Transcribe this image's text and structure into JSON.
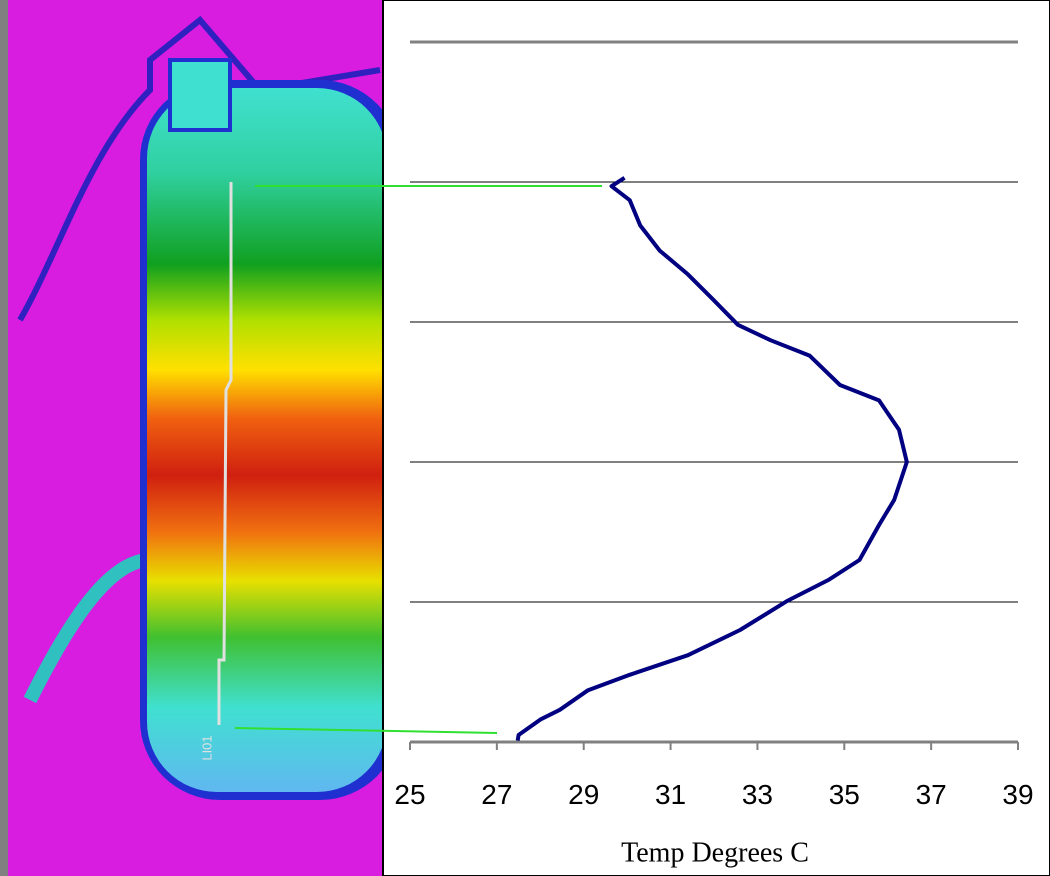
{
  "image_label": "LI01",
  "chart_data": {
    "type": "line",
    "xlabel": "Temp Degrees C",
    "xlim": [
      25,
      39
    ],
    "xticks": [
      25,
      27,
      29,
      31,
      33,
      35,
      37,
      39
    ],
    "ylim": [
      0,
      5
    ],
    "yticks": [
      0,
      1,
      2,
      3,
      4,
      5
    ],
    "grid": true,
    "series": [
      {
        "color": "#000080",
        "x": [
          29.94,
          29.64,
          30.06,
          30.3,
          30.75,
          31.4,
          31.98,
          32.55,
          33.3,
          34.2,
          34.9,
          35.8,
          36.26,
          36.44,
          36.15,
          35.8,
          35.35,
          34.65,
          33.7,
          32.6,
          31.4,
          30.06,
          29.1,
          28.45,
          28.0,
          27.5,
          27.48
        ],
        "values": [
          4.03,
          3.97,
          3.87,
          3.69,
          3.51,
          3.34,
          3.16,
          2.98,
          2.87,
          2.76,
          2.55,
          2.44,
          2.23,
          2.0,
          1.73,
          1.55,
          1.3,
          1.16,
          1.01,
          0.8,
          0.62,
          0.48,
          0.37,
          0.23,
          0.16,
          0.05,
          0.01
        ]
      }
    ]
  }
}
